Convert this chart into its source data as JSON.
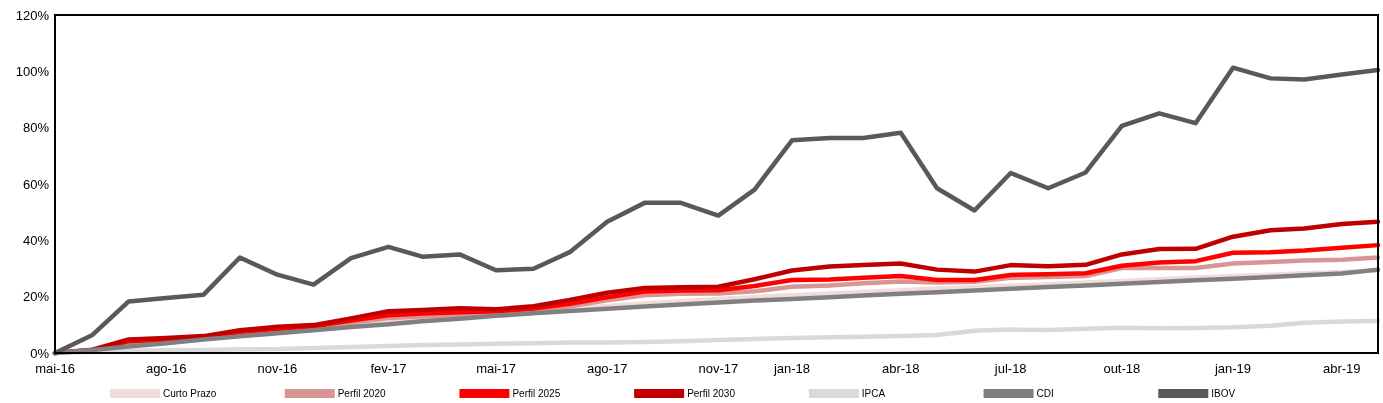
{
  "chart_data": {
    "type": "line",
    "x": [
      "2016-05",
      "2016-06",
      "2016-07",
      "2016-08",
      "2016-09",
      "2016-10",
      "2016-11",
      "2016-12",
      "2017-01",
      "2017-02",
      "2017-03",
      "2017-04",
      "2017-05",
      "2017-06",
      "2017-07",
      "2017-08",
      "2017-09",
      "2017-10",
      "2017-11",
      "2017-12",
      "2018-01",
      "2018-02",
      "2018-03",
      "2018-04",
      "2018-05",
      "2018-06",
      "2018-07",
      "2018-08",
      "2018-09",
      "2018-10",
      "2018-11",
      "2018-12",
      "2019-01",
      "2019-02",
      "2019-03",
      "2019-04",
      "2019-05"
    ],
    "series": [
      {
        "name": "Curto Prazo",
        "color": "#f2dcdb",
        "values": [
          0,
          1.2,
          2.6,
          3.8,
          5.1,
          6.3,
          7.4,
          8.5,
          9.7,
          10.8,
          11.9,
          12.9,
          13.9,
          14.9,
          15.8,
          16.7,
          17.6,
          18.4,
          19.2,
          19.9,
          20.5,
          21.1,
          21.7,
          22.3,
          22.9,
          23.4,
          23.9,
          24.4,
          25.0,
          25.6,
          26.2,
          26.8,
          27.3,
          27.8,
          28.3,
          28.8,
          29.3
        ]
      },
      {
        "name": "Perfil 2020",
        "color": "#d99594",
        "values": [
          0,
          0.9,
          3.6,
          4.3,
          5.1,
          6.9,
          8.0,
          8.9,
          10.7,
          12.4,
          13.0,
          13.6,
          14.0,
          15.0,
          16.6,
          18.7,
          20.5,
          21.0,
          21.1,
          21.9,
          23.5,
          24.0,
          24.8,
          25.4,
          25.0,
          25.3,
          26.7,
          27.0,
          27.3,
          30.2,
          30.2,
          30.2,
          31.8,
          32.3,
          32.8,
          33.1,
          33.9
        ]
      },
      {
        "name": "Perfil 2025",
        "color": "#ff0000",
        "values": [
          0,
          1.0,
          4.2,
          4.8,
          5.6,
          7.5,
          8.6,
          9.5,
          11.5,
          13.4,
          14.0,
          14.5,
          14.8,
          15.8,
          17.5,
          19.8,
          21.8,
          22.2,
          22.3,
          23.8,
          25.9,
          26.1,
          26.7,
          27.3,
          25.9,
          25.9,
          27.7,
          28.0,
          28.3,
          31.0,
          32.1,
          32.6,
          35.6,
          35.8,
          36.4,
          37.4,
          38.3
        ]
      },
      {
        "name": "Perfil 2030",
        "color": "#c00000",
        "values": [
          0,
          1.2,
          4.8,
          5.3,
          6.0,
          8.1,
          9.3,
          9.9,
          12.3,
          14.8,
          15.3,
          15.9,
          15.5,
          16.6,
          18.8,
          21.4,
          23.1,
          23.3,
          23.5,
          26.2,
          29.3,
          30.7,
          31.2,
          31.8,
          29.6,
          28.9,
          31.2,
          30.8,
          31.3,
          35.0,
          36.9,
          37.0,
          41.3,
          43.6,
          44.2,
          45.8,
          46.6
        ]
      },
      {
        "name": "IPCA",
        "color": "#d9d9d9",
        "values": [
          0,
          0.4,
          0.8,
          1.0,
          1.1,
          1.3,
          1.4,
          1.8,
          2.1,
          2.5,
          2.8,
          3.0,
          3.3,
          3.5,
          3.7,
          3.7,
          3.9,
          4.2,
          4.6,
          5.0,
          5.3,
          5.6,
          5.8,
          6.0,
          6.4,
          7.9,
          8.3,
          8.2,
          8.6,
          9.0,
          8.8,
          8.9,
          9.1,
          9.7,
          10.7,
          11.2,
          11.4
        ]
      },
      {
        "name": "CDI",
        "color": "#808080",
        "values": [
          0,
          1.1,
          2.3,
          3.5,
          4.8,
          5.9,
          7.0,
          8.1,
          9.2,
          10.2,
          11.3,
          12.2,
          13.2,
          14.1,
          14.9,
          15.7,
          16.5,
          17.2,
          17.9,
          18.6,
          19.2,
          19.8,
          20.4,
          21.0,
          21.6,
          22.2,
          22.8,
          23.4,
          24.0,
          24.6,
          25.2,
          25.8,
          26.4,
          27.0,
          27.6,
          28.2,
          29.6
        ]
      },
      {
        "name": "IBOV",
        "color": "#595959",
        "values": [
          0,
          6.4,
          18.3,
          19.5,
          20.7,
          33.9,
          27.8,
          24.3,
          33.7,
          37.7,
          34.2,
          35.0,
          29.4,
          29.9,
          35.8,
          46.6,
          53.3,
          53.3,
          48.8,
          58.0,
          75.5,
          76.3,
          76.3,
          78.2,
          58.5,
          50.6,
          63.9,
          58.5,
          64.1,
          80.6,
          85.1,
          81.6,
          101.3,
          97.5,
          97.1,
          98.9,
          100.5
        ]
      }
    ],
    "xlim": [
      "2016-05",
      "2019-05"
    ],
    "xticks": [
      {
        "value": "2016-05",
        "label": "mai-16"
      },
      {
        "value": "2016-08",
        "label": "ago-16"
      },
      {
        "value": "2016-11",
        "label": "nov-16"
      },
      {
        "value": "2017-02",
        "label": "fev-17"
      },
      {
        "value": "2017-05",
        "label": "mai-17"
      },
      {
        "value": "2017-08",
        "label": "ago-17"
      },
      {
        "value": "2017-11",
        "label": "nov-17"
      },
      {
        "value": "2018-01",
        "label": "jan-18"
      },
      {
        "value": "2018-04",
        "label": "abr-18"
      },
      {
        "value": "2018-07",
        "label": "jul-18"
      },
      {
        "value": "2018-10",
        "label": "out-18"
      },
      {
        "value": "2019-01",
        "label": "jan-19"
      },
      {
        "value": "2019-04",
        "label": "abr-19"
      }
    ],
    "ylim": [
      0,
      120
    ],
    "yticks": [
      {
        "value": 0,
        "label": "0%"
      },
      {
        "value": 20,
        "label": "20%"
      },
      {
        "value": 40,
        "label": "40%"
      },
      {
        "value": 60,
        "label": "60%"
      },
      {
        "value": 80,
        "label": "80%"
      },
      {
        "value": 100,
        "label": "100%"
      },
      {
        "value": 120,
        "label": "120%"
      }
    ],
    "grid": false,
    "legend": "bottom",
    "marker": "none",
    "line_style": "solid"
  }
}
